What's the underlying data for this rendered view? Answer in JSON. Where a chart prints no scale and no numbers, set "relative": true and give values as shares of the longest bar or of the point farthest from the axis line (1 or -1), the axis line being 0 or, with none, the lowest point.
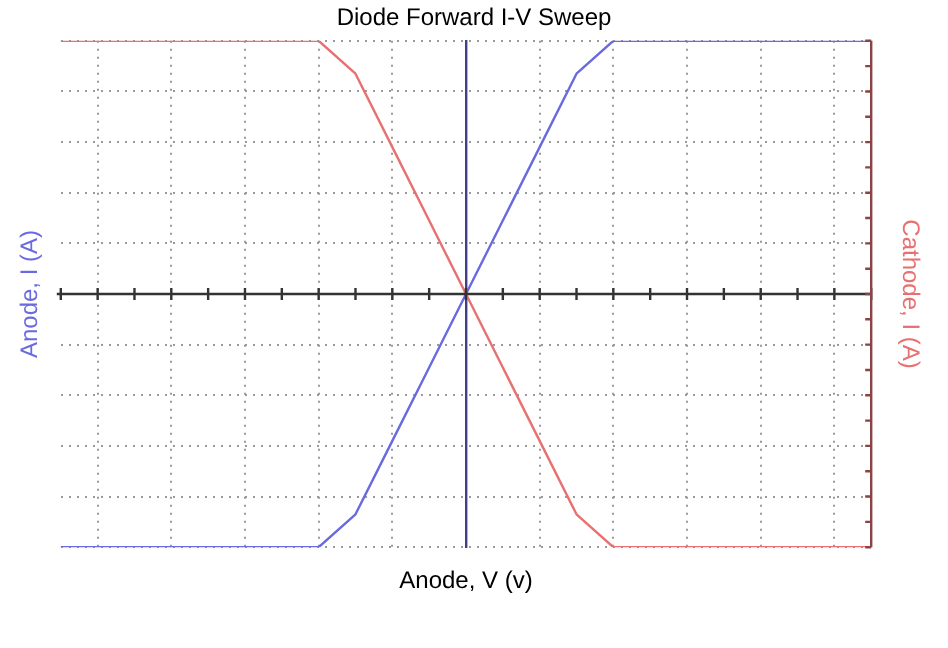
{
  "chart_data": {
    "type": "line",
    "title": "Diode Forward I-V Sweep",
    "xlabel": "Anode, V (v)",
    "ylabel": "Anode, I (A)",
    "y2label": "Cathode, I (A)",
    "relative": true,
    "grid": true,
    "legend": false,
    "marker": "none",
    "line_style": "solid",
    "categories": [
      null,
      null,
      null,
      null,
      null,
      null,
      null,
      null,
      null,
      null,
      null,
      null,
      null,
      null,
      null,
      null,
      null,
      null,
      null,
      null,
      null,
      null,
      null
    ],
    "series": [
      {
        "color": "#6a6ae0",
        "values": [
          -1,
          -1,
          -1,
          -1,
          -1,
          -1,
          -1,
          -1,
          -0.87,
          -0.58,
          -0.29,
          0,
          0.29,
          0.58,
          0.87,
          1,
          1,
          1,
          1,
          1,
          1,
          1,
          1
        ]
      },
      {
        "color": "#e87070",
        "values": [
          1,
          1,
          1,
          1,
          1,
          1,
          1,
          1,
          0.87,
          0.58,
          0.29,
          0,
          -0.29,
          -0.58,
          -0.87,
          -1,
          -1,
          -1,
          -1,
          -1,
          -1,
          -1,
          -1
        ]
      }
    ]
  }
}
